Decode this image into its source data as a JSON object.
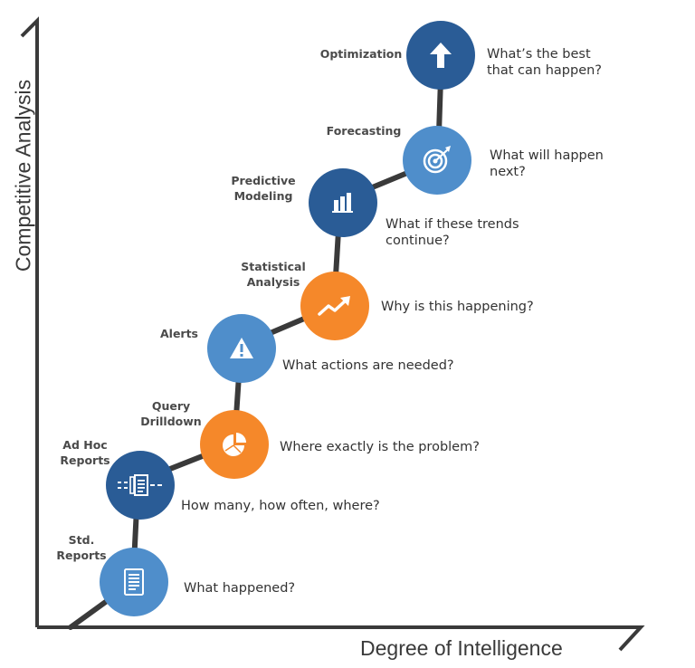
{
  "axes": {
    "y_label": "Competitive Analysis",
    "x_label": "Degree of Intelligence"
  },
  "colors": {
    "dark_blue": "#2a5c96",
    "light_blue": "#4f8ecb",
    "orange": "#f5882a",
    "axis": "#3a3a3a",
    "connector": "#3a3a3a"
  },
  "stages": [
    {
      "label_lines": [
        "Std.",
        "Reports"
      ],
      "question_lines": [
        "What happened?"
      ],
      "icon": "document-icon",
      "color": "light_blue"
    },
    {
      "label_lines": [
        "Ad Hoc",
        "Reports"
      ],
      "question_lines": [
        "How many, how often, where?"
      ],
      "icon": "report-flow-icon",
      "color": "dark_blue"
    },
    {
      "label_lines": [
        "Query",
        "Drilldown"
      ],
      "question_lines": [
        "Where exactly is the problem?"
      ],
      "icon": "pie-chart-icon",
      "color": "orange"
    },
    {
      "label_lines": [
        "Alerts"
      ],
      "question_lines": [
        "What actions are needed?"
      ],
      "icon": "warning-icon",
      "color": "light_blue"
    },
    {
      "label_lines": [
        "Statistical",
        "Analysis"
      ],
      "question_lines": [
        "Why is this happening?"
      ],
      "icon": "trend-arrow-icon",
      "color": "orange"
    },
    {
      "label_lines": [
        "Predictive",
        "Modeling"
      ],
      "question_lines": [
        "What if these trends",
        "continue?"
      ],
      "icon": "bar-chart-icon",
      "color": "dark_blue"
    },
    {
      "label_lines": [
        "Forecasting"
      ],
      "question_lines": [
        "What will happen",
        "next?"
      ],
      "icon": "target-icon",
      "color": "light_blue"
    },
    {
      "label_lines": [
        "Optimization"
      ],
      "question_lines": [
        "What’s the best",
        "that can happen?"
      ],
      "icon": "up-arrow-icon",
      "color": "dark_blue"
    }
  ]
}
